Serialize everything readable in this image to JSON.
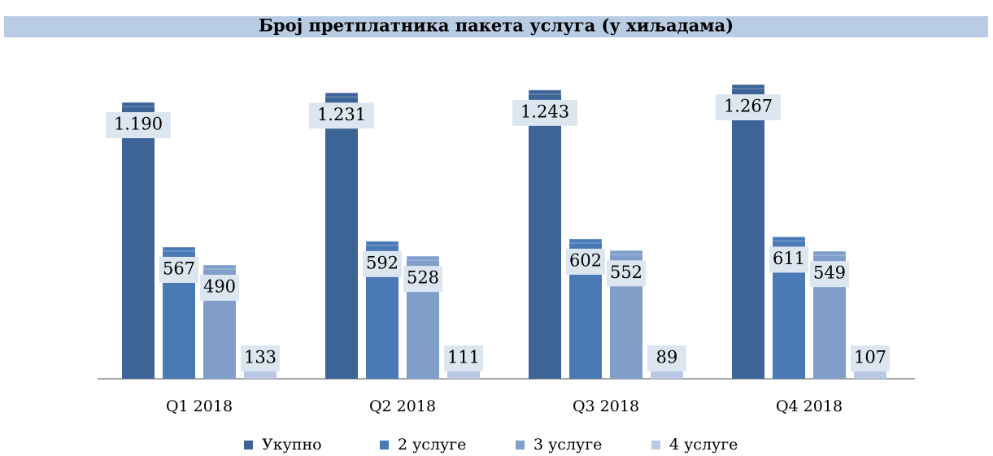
{
  "chart_data": {
    "type": "bar",
    "title": "Број претплатника пакета услуга (у хиљадама)",
    "categories": [
      "Q1 2018",
      "Q2 2018",
      "Q3 2018",
      "Q4 2018"
    ],
    "series": [
      {
        "name": "Укупно",
        "color": "#3d6496",
        "values": [
          1190,
          1231,
          1243,
          1267
        ],
        "value_labels": [
          "1.190",
          "1.231",
          "1.243",
          "1.267"
        ]
      },
      {
        "name": "2 услуге",
        "color": "#4a7ab5",
        "values": [
          567,
          592,
          602,
          611
        ]
      },
      {
        "name": "3 услуге",
        "color": "#7f9fca",
        "values": [
          490,
          528,
          552,
          549
        ]
      },
      {
        "name": "4 услуге",
        "color": "#b9c9e3",
        "values": [
          133,
          111,
          89,
          107
        ]
      }
    ],
    "legend": "bottom"
  }
}
